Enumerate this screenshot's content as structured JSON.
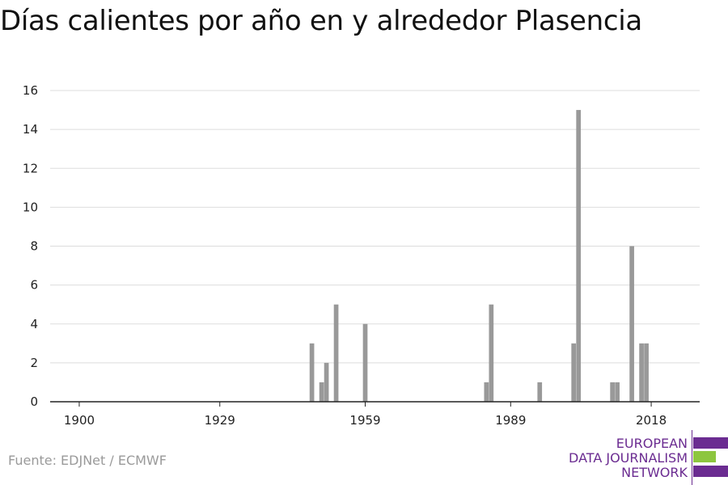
{
  "title": "Días calientes por año en y alrededor Plasencia",
  "source": "Fuente: EDJNet / ECMWF",
  "logo": {
    "lines": [
      "EUROPEAN",
      "DATA JOURNALISM",
      "NETWORK"
    ],
    "colors": {
      "text": "#6b2c91",
      "purple": "#6b2c91",
      "green": "#8dc63f"
    }
  },
  "chart_data": {
    "type": "bar",
    "title": "Días calientes por año en y alrededor Plasencia",
    "xlabel": "",
    "ylabel": "",
    "xlim": [
      1894,
      2028
    ],
    "ylim": [
      0,
      16
    ],
    "yticks": [
      0,
      2,
      4,
      6,
      8,
      10,
      12,
      14,
      16
    ],
    "xticks": [
      1900,
      1929,
      1959,
      1989,
      2018
    ],
    "grid": true,
    "bar_color": "#999999",
    "x": [
      1948,
      1950,
      1951,
      1953,
      1959,
      1984,
      1985,
      1995,
      2002,
      2003,
      2010,
      2011,
      2014,
      2016,
      2017
    ],
    "values": [
      3,
      1,
      2,
      5,
      4,
      1,
      5,
      1,
      3,
      15,
      1,
      1,
      8,
      3,
      3
    ]
  }
}
